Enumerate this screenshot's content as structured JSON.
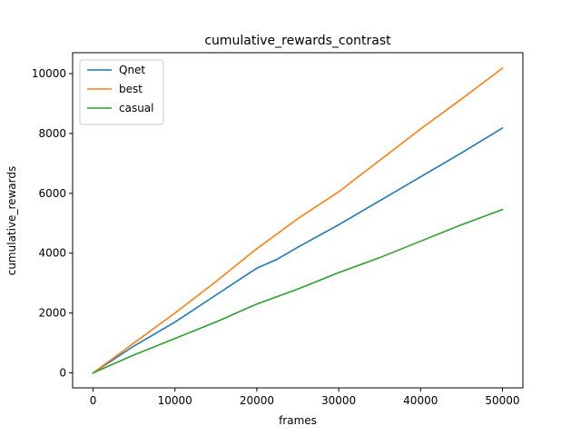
{
  "chart_data": {
    "type": "line",
    "title": "cumulative_rewards_contrast",
    "xlabel": "frames",
    "ylabel": "cumulative_rewards",
    "xlim": [
      -2500,
      52500
    ],
    "ylim": [
      -500,
      10700
    ],
    "xticks": [
      0,
      10000,
      20000,
      30000,
      40000,
      50000
    ],
    "yticks": [
      0,
      2000,
      4000,
      6000,
      8000,
      10000
    ],
    "grid": false,
    "legend_position": "upper-left",
    "series": [
      {
        "name": "Qnet",
        "color": "#1f77b4",
        "x": [
          0,
          5000,
          10000,
          15000,
          20000,
          22500,
          25000,
          30000,
          35000,
          40000,
          45000,
          50000
        ],
        "y": [
          0,
          900,
          1700,
          2600,
          3500,
          3800,
          4200,
          4950,
          5750,
          6550,
          7350,
          8180
        ]
      },
      {
        "name": "best",
        "color": "#ff7f0e",
        "x": [
          0,
          5000,
          10000,
          15000,
          20000,
          25000,
          30000,
          35000,
          40000,
          45000,
          50000
        ],
        "y": [
          0,
          1000,
          2000,
          3050,
          4150,
          5150,
          6050,
          7100,
          8150,
          9150,
          10180
        ]
      },
      {
        "name": "casual",
        "color": "#2ca02c",
        "x": [
          0,
          5000,
          10000,
          15000,
          20000,
          22500,
          25000,
          30000,
          35000,
          40000,
          45000,
          50000
        ],
        "y": [
          0,
          600,
          1150,
          1700,
          2300,
          2550,
          2800,
          3350,
          3850,
          4400,
          4950,
          5460
        ]
      }
    ]
  }
}
